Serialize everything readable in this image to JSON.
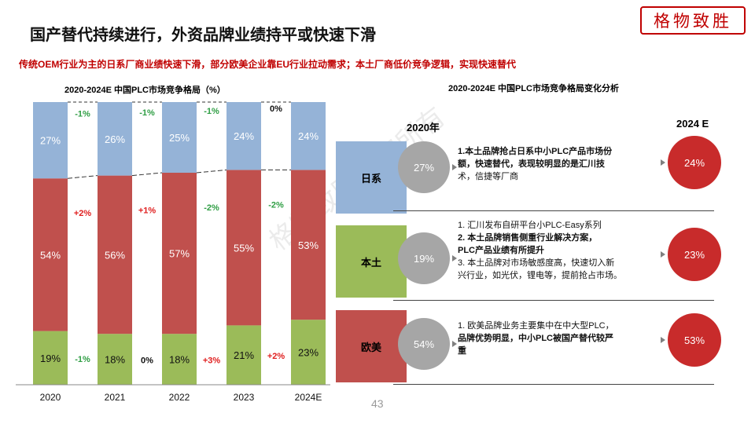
{
  "header": {
    "title": "国产替代持续进行，外资品牌业绩持平或快速下滑",
    "subtitle": "传统OEM行业为主的日系厂商业绩快速下滑，部分欧美企业靠EU行业拉动需求；本土厂商低价竞争逻辑，实现快速替代",
    "logo_text": "格物致胜",
    "page_number": "43",
    "watermark": "格物致胜版权所有"
  },
  "chart_data": {
    "type": "bar",
    "stacked": true,
    "percent": true,
    "title": "2020-2024E 中国PLC市场竞争格局（%）",
    "categories": [
      "2020",
      "2021",
      "2022",
      "2023",
      "2024E"
    ],
    "series": [
      {
        "name": "欧美",
        "color": "#9bbb59",
        "values": [
          19,
          18,
          18,
          21,
          23
        ]
      },
      {
        "name": "本土",
        "color": "#c0504d",
        "values": [
          54,
          56,
          57,
          55,
          53
        ]
      },
      {
        "name": "日系",
        "color": "#95b3d7",
        "values": [
          27,
          26,
          25,
          24,
          24
        ]
      }
    ],
    "changes": {
      "日系": [
        "-1%",
        "-1%",
        "-1%",
        "0%"
      ],
      "本土": [
        "+2%",
        "+1%",
        "-2%",
        "-2%"
      ],
      "欧美": [
        "-1%",
        "0%",
        "+3%",
        "+2%"
      ]
    },
    "legend_labels": [
      "日系",
      "本土",
      "欧美"
    ],
    "ylim": [
      0,
      100
    ]
  },
  "right_panel": {
    "title": "2020-2024E 中国PLC市场竞争格局变化分析",
    "year_left": "2020年",
    "year_right": "2024 E",
    "rows": [
      {
        "left_value": "27%",
        "right_value": "24%",
        "lines": [
          "1.本土品牌抢占日系中小PLC产品市场份",
          "额，快速替代，表现较明显的是汇川技",
          "术，信捷等厂商"
        ]
      },
      {
        "left_value": "19%",
        "right_value": "23%",
        "lines": [
          "1.   汇川发布自研平台小PLC-Easy系列",
          "2.   本土品牌销售侧重行业解决方案，",
          "       PLC产品业绩有所提升",
          "3. 本土品牌对市场敏感度高，快速切入新",
          "兴行业，如光伏，锂电等，提前抢占市场。"
        ]
      },
      {
        "left_value": "54%",
        "right_value": "53%",
        "lines": [
          "1. 欧美品牌业务主要集中在中大型PLC，",
          "品牌优势明显，中小PLC被国产替代较严",
          "重"
        ]
      }
    ]
  }
}
